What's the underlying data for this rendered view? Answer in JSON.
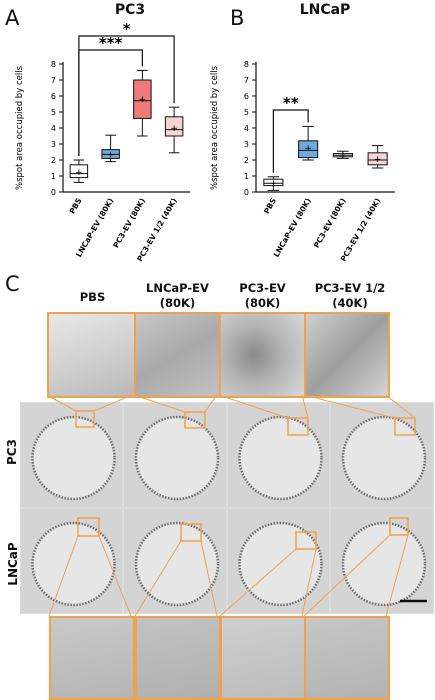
{
  "panels": {
    "a": "A",
    "b": "B",
    "c": "C"
  },
  "chart_data": [
    {
      "type": "boxplot",
      "title": "PC3",
      "ylabel": "%spot area occupied by cells",
      "ylim": [
        0,
        8
      ],
      "yticks": [
        "0",
        "1",
        "2",
        "3",
        "4",
        "5",
        "6",
        "7",
        "8"
      ],
      "categories": [
        "PBS",
        "LNCaP-EV (80K)",
        "PC3-EV (80K)",
        "PC3-EV 1/2 (40K)"
      ],
      "boxes": [
        {
          "min": 0.6,
          "q1": 0.9,
          "median": 1.15,
          "q3": 1.7,
          "max": 2.0,
          "mean": 1.25,
          "color": "#ffffff"
        },
        {
          "min": 1.9,
          "q1": 2.1,
          "median": 2.35,
          "q3": 2.65,
          "max": 3.55,
          "mean": 2.35,
          "color": "#6fa8dc"
        },
        {
          "min": 3.5,
          "q1": 4.6,
          "median": 5.7,
          "q3": 7.0,
          "max": 7.6,
          "mean": 5.8,
          "color": "#f07a7a"
        },
        {
          "min": 2.45,
          "q1": 3.5,
          "median": 3.9,
          "q3": 4.7,
          "max": 5.3,
          "mean": 4.0,
          "color": "#f8d4d4"
        }
      ],
      "significance": [
        {
          "from": 0,
          "to": 3,
          "label": "*"
        },
        {
          "from": 0,
          "to": 2,
          "label": "***"
        }
      ]
    },
    {
      "type": "boxplot",
      "title": "LNCaP",
      "ylabel": "%spot area occupied by cells",
      "ylim": [
        0,
        8
      ],
      "yticks": [
        "0",
        "1",
        "2",
        "3",
        "4",
        "5",
        "6",
        "7",
        "8"
      ],
      "categories": [
        "PBS",
        "LNCaP-EV (80K)",
        "PC3-EV (80K)",
        "PC3-EV 1/2 (40K)"
      ],
      "boxes": [
        {
          "min": 0.1,
          "q1": 0.4,
          "median": 0.55,
          "q3": 0.8,
          "max": 0.95,
          "mean": 0.55,
          "color": "#ffffff"
        },
        {
          "min": 2.0,
          "q1": 2.15,
          "median": 2.6,
          "q3": 3.2,
          "max": 4.1,
          "mean": 2.75,
          "color": "#6fa8dc"
        },
        {
          "min": 2.1,
          "q1": 2.2,
          "median": 2.3,
          "q3": 2.4,
          "max": 2.55,
          "mean": 2.3,
          "color": "#ffffff"
        },
        {
          "min": 1.5,
          "q1": 1.7,
          "median": 2.0,
          "q3": 2.45,
          "max": 2.9,
          "mean": 2.05,
          "color": "#f8d4d4"
        }
      ],
      "significance": [
        {
          "from": 0,
          "to": 1,
          "label": "**"
        }
      ]
    }
  ],
  "panel_c": {
    "col_headers": [
      {
        "line1": "PBS",
        "line2": ""
      },
      {
        "line1": "LNCaP-EV",
        "line2": "(80K)"
      },
      {
        "line1": "PC3-EV",
        "line2": "(80K)"
      },
      {
        "line1": "PC3-EV 1/2",
        "line2": "(40K)"
      }
    ],
    "row_labels": [
      "PC3",
      "LNCaP"
    ],
    "accent_color": "#f0a24a"
  }
}
